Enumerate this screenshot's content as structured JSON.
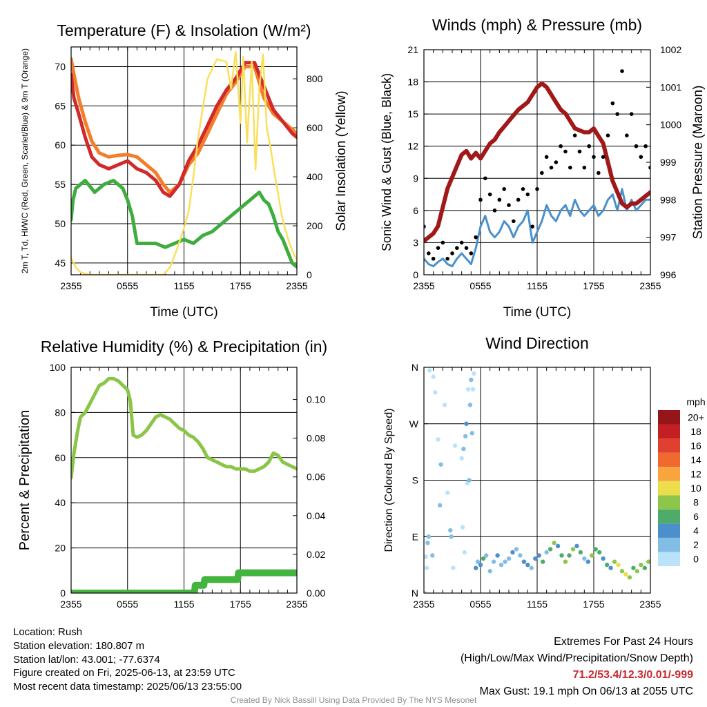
{
  "chart_data": [
    {
      "type": "line",
      "title": "Temperature (F) & Insolation (W/m²)",
      "xlabel": "Time (UTC)",
      "ylabel": "2m T, Td, HI/WC (Red, Green, Scarlet/Blue) & 9m T (Orange)",
      "ylabel2": "Solar Insolation (Yellow)",
      "xticks": [
        "2355",
        "0555",
        "1155",
        "1755",
        "2355"
      ],
      "xlim": [
        0,
        24
      ],
      "ylim": [
        43.5,
        72.5
      ],
      "yticks": [
        45,
        50,
        55,
        60,
        65,
        70
      ],
      "y2lim": [
        0,
        930
      ],
      "y2ticks": [
        0,
        200,
        400,
        600,
        800
      ],
      "grid": true,
      "series": [
        {
          "key": "t9",
          "axis": "left",
          "color": "#f57d2a",
          "x": [
            0,
            0.3,
            0.8,
            1.5,
            2.2,
            3,
            4,
            5,
            6,
            7,
            8,
            9,
            9.8,
            10.5,
            11.5,
            12.5,
            13.5,
            14.5,
            15.5,
            16.5,
            17.5,
            18.5,
            19.5,
            20.5,
            21.5,
            22.5,
            23.5,
            24
          ],
          "y": [
            71,
            69,
            66,
            63,
            60.5,
            59,
            58.5,
            58.7,
            58.8,
            58.5,
            57.5,
            56.5,
            55,
            54,
            55,
            57.5,
            59,
            61.5,
            64,
            66.5,
            68,
            70,
            70,
            66,
            64,
            63,
            62,
            61.5
          ]
        },
        {
          "key": "t2",
          "axis": "left",
          "color": "#d02a2a",
          "x": [
            0,
            0.3,
            0.8,
            1.5,
            2.2,
            3,
            4,
            5,
            6,
            7,
            8,
            9,
            9.8,
            10.5,
            11.5,
            12.5,
            13.5,
            14.5,
            15.5,
            16.5,
            17.5,
            18.5,
            19.5,
            20.5,
            21.5,
            22.5,
            23.5,
            24
          ],
          "y": [
            69,
            66,
            64,
            61,
            58.5,
            57.5,
            57,
            57.5,
            58,
            57,
            56.5,
            55.5,
            54,
            53.5,
            55,
            58,
            60,
            62.5,
            65,
            67,
            68.5,
            70.5,
            70.5,
            67.5,
            64.5,
            63,
            61.5,
            61
          ]
        },
        {
          "key": "td",
          "axis": "left",
          "color": "#3eac3e",
          "x": [
            0,
            0.2,
            0.5,
            1,
            1.5,
            2.5,
            3.5,
            4.5,
            5.5,
            6,
            6.5,
            7,
            8,
            9,
            10,
            11,
            12,
            13,
            14,
            15,
            16,
            17,
            18,
            19,
            20,
            20.5,
            21,
            21.5,
            22,
            22.5,
            23,
            23.5,
            24
          ],
          "y": [
            50.5,
            53,
            54.5,
            55,
            55.5,
            54,
            55,
            55.5,
            54.5,
            53,
            51,
            47.5,
            47.5,
            47.5,
            47,
            47.5,
            48,
            47.5,
            48.5,
            49,
            50,
            51,
            52,
            53,
            54,
            53,
            52.5,
            51,
            49,
            48,
            46.5,
            45,
            44.5
          ]
        },
        {
          "key": "solar",
          "axis": "right",
          "color": "#fae05a",
          "x": [
            0,
            0.5,
            1,
            2,
            3,
            4,
            5,
            6,
            7,
            8,
            9,
            9.8,
            10.5,
            11.3,
            12,
            12.5,
            13,
            13.5,
            14.5,
            15.5,
            16.5,
            17,
            17.5,
            18,
            18.3,
            18.7,
            19.2,
            19.6,
            20,
            20.4,
            20.8,
            21.2,
            21.6,
            22,
            22.4,
            22.8,
            23.2,
            23.6,
            24
          ],
          "y": [
            70,
            30,
            10,
            0,
            0,
            0,
            0,
            0,
            0,
            0,
            0,
            0,
            30,
            110,
            190,
            260,
            400,
            560,
            800,
            880,
            870,
            760,
            910,
            620,
            890,
            540,
            870,
            430,
            760,
            900,
            600,
            520,
            420,
            330,
            240,
            180,
            130,
            90,
            60
          ]
        }
      ]
    },
    {
      "type": "line",
      "title": "Winds (mph) & Pressure (mb)",
      "xlabel": "Time (UTC)",
      "ylabel": "Sonic Wind & Gust (Blue, Black)",
      "ylabel2": "Station Pressure (Maroon)",
      "xticks": [
        "2355",
        "0555",
        "1155",
        "1755",
        "2355"
      ],
      "xlim": [
        0,
        24
      ],
      "ylim": [
        0,
        21
      ],
      "yticks": [
        0,
        3,
        6,
        9,
        12,
        15,
        18,
        21
      ],
      "y2lim": [
        996,
        1002
      ],
      "y2ticks": [
        996,
        997,
        998,
        999,
        1000,
        1001,
        1002
      ],
      "grid": true,
      "series": [
        {
          "key": "wind",
          "axis": "left",
          "color": "#4a90cc",
          "x": [
            0,
            0.5,
            1,
            1.5,
            2,
            2.5,
            3,
            3.5,
            4,
            4.5,
            5,
            5.5,
            6,
            6.5,
            7,
            7.5,
            8,
            8.5,
            9,
            9.5,
            10,
            10.5,
            11,
            11.5,
            12,
            12.5,
            13,
            13.5,
            14,
            14.5,
            15,
            15.5,
            16,
            16.5,
            17,
            17.5,
            18,
            18.5,
            19,
            19.5,
            20,
            20.5,
            21,
            21.5,
            22,
            22.5,
            23,
            23.5,
            24
          ],
          "y": [
            1.5,
            1,
            0.8,
            1.2,
            1.5,
            1,
            0.8,
            1.5,
            2,
            1.5,
            1,
            2.5,
            4.5,
            5.5,
            4,
            3.5,
            4,
            5,
            4.5,
            3.5,
            4.5,
            5,
            6,
            3,
            4,
            5,
            6.5,
            5.5,
            5,
            6,
            6.5,
            5.5,
            7,
            6,
            5.5,
            6,
            6.5,
            5.5,
            6,
            7,
            7.5,
            6,
            8,
            6,
            7,
            6,
            6.5,
            7,
            7
          ]
        },
        {
          "key": "pressure",
          "axis": "right",
          "color": "#a01818",
          "x": [
            0,
            0.5,
            1,
            1.5,
            2,
            2.5,
            3,
            3.5,
            4,
            4.5,
            5,
            5.5,
            6,
            6.5,
            7,
            7.5,
            8,
            8.5,
            9,
            9.5,
            10,
            10.5,
            11,
            11.5,
            12,
            12.5,
            13,
            13.5,
            14,
            14.5,
            15,
            15.5,
            16,
            16.5,
            17,
            17.5,
            18,
            18.5,
            19,
            19.5,
            20,
            20.5,
            21,
            21.5,
            22,
            22.5,
            23,
            23.5,
            24
          ],
          "y": [
            996.9,
            997.0,
            997.1,
            997.3,
            997.8,
            998.3,
            998.6,
            998.9,
            999.2,
            999.3,
            999.1,
            999.25,
            999.1,
            999.3,
            999.5,
            999.6,
            999.8,
            999.95,
            1000.1,
            1000.25,
            1000.4,
            1000.5,
            1000.6,
            1000.8,
            1001.0,
            1001.1,
            1001.0,
            1000.8,
            1000.6,
            1000.4,
            1000.3,
            1000.1,
            999.9,
            999.85,
            999.8,
            999.8,
            999.9,
            999.7,
            999.5,
            999.0,
            998.5,
            998.2,
            997.9,
            997.8,
            997.9,
            997.9,
            998.0,
            998.1,
            998.2
          ]
        },
        {
          "key": "gust",
          "axis": "left",
          "color": "#000000",
          "style": "dots",
          "x": [
            0,
            0.5,
            1,
            1.5,
            2,
            2.5,
            3,
            3.5,
            4,
            4.5,
            5,
            5.5,
            6,
            6.5,
            7,
            7.5,
            8,
            8.5,
            9,
            9.5,
            10,
            10.5,
            11,
            11.5,
            12,
            12.5,
            13,
            13.5,
            14,
            14.5,
            15,
            15.5,
            16,
            16.5,
            17,
            17.5,
            18,
            18.5,
            19,
            19.5,
            20,
            20.5,
            21,
            21.5,
            22,
            22.5,
            23,
            23.5,
            24
          ],
          "y": [
            4.5,
            2,
            1.5,
            2.5,
            3,
            1.5,
            2,
            2.5,
            3,
            2.5,
            2,
            3.5,
            7,
            9,
            7.5,
            6,
            7,
            8,
            6.5,
            5,
            7,
            8,
            7.5,
            4.5,
            8,
            9.5,
            11,
            10,
            10.5,
            12,
            11.5,
            10,
            13,
            11.5,
            10,
            12,
            11,
            9.5,
            11,
            13,
            16,
            15,
            19,
            13,
            15,
            12,
            11,
            12,
            10
          ]
        }
      ]
    },
    {
      "type": "line",
      "title": "Relative Humidity (%) & Precipitation (in)",
      "xlabel": "",
      "ylabel": "Percent & Precipitation",
      "xticks": [
        "2355",
        "0555",
        "1155",
        "1755",
        "2355"
      ],
      "xlim": [
        0,
        24
      ],
      "ylim": [
        0,
        100
      ],
      "yticks": [
        0,
        20,
        40,
        60,
        80,
        100
      ],
      "y2lim": [
        0,
        0.1166
      ],
      "y2ticks": [
        "0.00",
        "0.02",
        "0.04",
        "0.06",
        "0.08",
        "0.10"
      ],
      "grid": true,
      "series": [
        {
          "key": "rh",
          "axis": "left",
          "color": "#8ac547",
          "x": [
            0,
            0.3,
            0.7,
            1,
            1.5,
            2,
            2.5,
            3,
            3.5,
            4,
            4.5,
            5,
            5.5,
            6,
            6.3,
            6.6,
            7,
            7.5,
            8,
            8.5,
            9,
            9.5,
            10,
            10.5,
            11,
            11.5,
            12,
            12.5,
            13,
            13.5,
            14,
            14.5,
            15,
            15.5,
            16,
            16.5,
            17,
            17.5,
            18,
            18.5,
            19,
            19.5,
            20,
            20.5,
            21,
            21.5,
            22,
            22.5,
            23,
            23.5,
            24
          ],
          "y": [
            51,
            62,
            72,
            78,
            80,
            84,
            88,
            92,
            93,
            95,
            95,
            94,
            92,
            90,
            85,
            70,
            69,
            70,
            72,
            75,
            78,
            79,
            78,
            77,
            75,
            73,
            72,
            70,
            69,
            67,
            64,
            60,
            59,
            58,
            57,
            56,
            56,
            55,
            55,
            55,
            54,
            54,
            55,
            56,
            58,
            62,
            61,
            58,
            57,
            56,
            55
          ]
        },
        {
          "key": "precip",
          "axis": "right",
          "color": "#44b440",
          "x": [
            0,
            13.1,
            13.2,
            14.1,
            14.2,
            17.7,
            17.8,
            24
          ],
          "y": [
            0,
            0,
            0.004,
            0.004,
            0.007,
            0.007,
            0.0105,
            0.0105
          ]
        }
      ]
    },
    {
      "type": "scatter",
      "title": "Wind Direction",
      "ylabel": "Direction (Colored By Speed)",
      "xticks": [
        "2355",
        "0555",
        "1155",
        "1755",
        "2355"
      ],
      "xlim": [
        0,
        24
      ],
      "yticks": [
        "N",
        "E",
        "S",
        "W",
        "N"
      ],
      "ylim": [
        0,
        360
      ],
      "grid": true,
      "colorbar": {
        "title": "mph",
        "labels": [
          "0",
          "2",
          "4",
          "6",
          "8",
          "10",
          "12",
          "14",
          "16",
          "18",
          "20+"
        ],
        "colors": [
          "#b8e3f8",
          "#82bde6",
          "#4b8fcb",
          "#4eac6a",
          "#8dc64b",
          "#ecdd4b",
          "#f8a540",
          "#f06a30",
          "#df4030",
          "#c41f22",
          "#94151a"
        ]
      },
      "points": {
        "x": [
          0.1,
          0.2,
          0.3,
          0.5,
          0.6,
          1,
          1.2,
          1.5,
          0.4,
          1.8,
          2.2,
          2.5,
          2.8,
          3.1,
          3.3,
          0.9,
          1.7,
          2.9,
          4,
          4.2,
          4.5,
          4.7,
          5,
          5.2,
          4.1,
          4.3,
          4.6,
          4.8,
          5.1,
          5.3,
          4.4,
          4.9,
          5.5,
          5.7,
          6,
          6.3,
          6.6,
          7,
          7.4,
          7.8,
          8.2,
          8.6,
          9,
          9.4,
          9.8,
          10.2,
          10.6,
          11,
          11.4,
          11.8,
          12.2,
          12.6,
          13,
          13.4,
          13.8,
          14.2,
          14.6,
          15,
          15.4,
          15.8,
          16.2,
          16.6,
          17,
          17.4,
          17.8,
          18.2,
          18.6,
          19,
          19.4,
          19.8,
          20.2,
          20.6,
          21,
          21.4,
          21.8,
          22.2,
          22.6,
          23,
          23.4,
          23.8
        ],
        "y": [
          0,
          58,
          40,
          90,
          355,
          345,
          320,
          245,
          80,
          205,
          300,
          160,
          100,
          40,
          235,
          60,
          140,
          90,
          215,
          230,
          270,
          325,
          340,
          325,
          105,
          65,
          175,
          180,
          255,
          350,
          250,
          300,
          40,
          50,
          45,
          55,
          60,
          35,
          50,
          60,
          45,
          50,
          55,
          65,
          70,
          60,
          50,
          45,
          40,
          55,
          60,
          50,
          65,
          70,
          80,
          75,
          60,
          50,
          60,
          70,
          75,
          65,
          55,
          50,
          60,
          70,
          65,
          55,
          45,
          40,
          50,
          45,
          35,
          30,
          25,
          40,
          35,
          45,
          40,
          50
        ],
        "speed": [
          1,
          1,
          0,
          2,
          1,
          0,
          1,
          1,
          2,
          2,
          1,
          1,
          2,
          1,
          1,
          3,
          2,
          3,
          1,
          2,
          4,
          1,
          2,
          0,
          0,
          1,
          1,
          2,
          2,
          1,
          3,
          3,
          4,
          3,
          4,
          6,
          2,
          3,
          2,
          4,
          2,
          3,
          2,
          4,
          2,
          3,
          5,
          4,
          2,
          5,
          4,
          6,
          3,
          6,
          8,
          4,
          7,
          8,
          6,
          9,
          4,
          7,
          3,
          5,
          8,
          6,
          7,
          4,
          6,
          5,
          8,
          10,
          8,
          11,
          9,
          7,
          9,
          8,
          7,
          8
        ]
      }
    }
  ],
  "footer": {
    "location": "Location: Rush",
    "elevation": "Station elevation: 180.807 m",
    "latlon": "Station lat/lon: 43.001; -77.6374",
    "created": "Figure created on Fri, 2025-06-13, at 23:59 UTC",
    "recent": "Most recent data timestamp: 2025/06/13 23:55:00",
    "extremes_title": "Extremes For Past 24 Hours",
    "extremes_sub": "(High/Low/Max Wind/Precipitation/Snow Depth)",
    "extremes_values": "71.2/53.4/12.3/0.01/-999",
    "max_gust": "Max Gust: 19.1 mph On 06/13 at 2055 UTC",
    "credit": "Created By Nick Bassill Using Data Provided By The NYS Mesonet"
  },
  "colors": {
    "extremes": "#c8282d",
    "credit": "#909090"
  }
}
